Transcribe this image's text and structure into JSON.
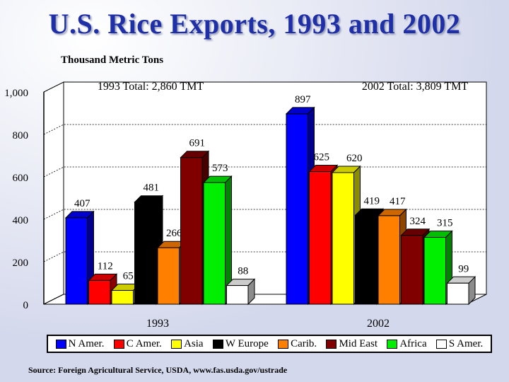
{
  "slide": {
    "title": "U.S. Rice Exports, 1993 and 2002",
    "unit_label": "Thousand Metric Tons",
    "source": "Source:  Foreign Agricultural Service, USDA, www.fas.usda.gov/ustrade"
  },
  "chart_data": {
    "type": "bar",
    "title": "U.S. Rice Exports, 1993 and 2002",
    "ylabel": "Thousand Metric Tons",
    "ylim": [
      0,
      1000
    ],
    "yticks": [
      0,
      200,
      400,
      600,
      800,
      1000
    ],
    "ytick_labels": [
      "0",
      "200",
      "400",
      "600",
      "800",
      "1,000"
    ],
    "categories": [
      "1993",
      "2002"
    ],
    "category_totals": [
      "1993 Total:  2,860 TMT",
      "2002 Total:  3,809 TMT"
    ],
    "legend_position": "bottom",
    "series": [
      {
        "name": "N Amer.",
        "color": "#0000ff",
        "values": [
          407,
          897
        ]
      },
      {
        "name": "C Amer.",
        "color": "#ff0000",
        "values": [
          112,
          625
        ]
      },
      {
        "name": "Asia",
        "color": "#ffff00",
        "values": [
          65,
          620
        ]
      },
      {
        "name": "W Europe",
        "color": "#000000",
        "values": [
          481,
          419
        ]
      },
      {
        "name": "Carib.",
        "color": "#ff8000",
        "values": [
          266,
          417
        ]
      },
      {
        "name": "Mid East",
        "color": "#800000",
        "values": [
          691,
          324
        ]
      },
      {
        "name": "Africa",
        "color": "#00ee00",
        "values": [
          573,
          315
        ]
      },
      {
        "name": "S Amer.",
        "color": "#ffffff",
        "values": [
          88,
          99
        ]
      }
    ]
  }
}
